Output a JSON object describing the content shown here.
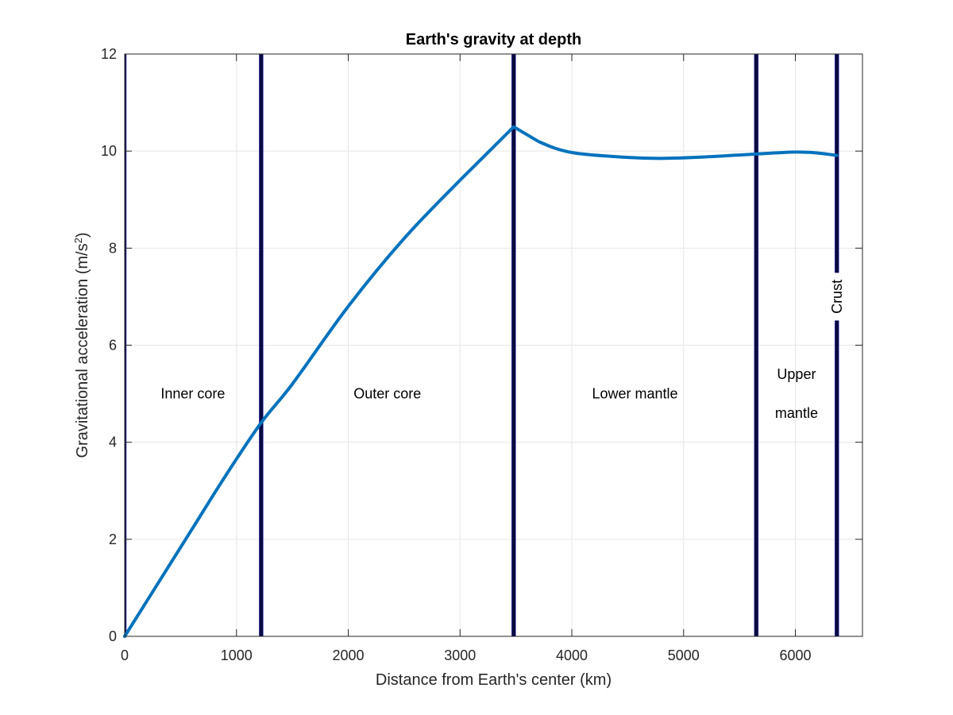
{
  "chart_data": {
    "type": "line",
    "title": "Earth's gravity at depth",
    "xlabel": "Distance from Earth's center (km)",
    "ylabel": "Gravitational acceleration (m/s",
    "ylabel_superscript": "2",
    "ylabel_suffix": ")",
    "xlim": [
      0,
      6600
    ],
    "ylim": [
      0,
      12
    ],
    "xticks": [
      0,
      1000,
      2000,
      3000,
      4000,
      5000,
      6000
    ],
    "yticks": [
      0,
      2,
      4,
      6,
      8,
      10,
      12
    ],
    "grid": true,
    "series": [
      {
        "color": "#0072bd",
        "x": [
          0,
          300,
          600,
          900,
          1220,
          1500,
          2000,
          2500,
          3000,
          3480,
          3700,
          4000,
          4500,
          4800,
          5200,
          5650,
          6000,
          6200,
          6371
        ],
        "y": [
          0,
          1.1,
          2.2,
          3.3,
          4.4,
          5.2,
          6.8,
          8.2,
          9.4,
          10.5,
          10.2,
          9.97,
          9.87,
          9.85,
          9.88,
          9.94,
          9.98,
          9.96,
          9.91
        ]
      }
    ],
    "boundaries": [
      0,
      1221,
      3480,
      5650,
      6371
    ],
    "regions": [
      {
        "label": "Inner core",
        "x": 610,
        "y": 5.0
      },
      {
        "label": "Outer core",
        "x": 2350,
        "y": 5.0
      },
      {
        "label": "Lower mantle",
        "x": 4565,
        "y": 5.0
      },
      {
        "label": "Upper",
        "x": 6010,
        "y": 5.4
      },
      {
        "label": "mantle",
        "x": 6010,
        "y": 4.6
      },
      {
        "label": "Crust",
        "x": 6371,
        "y": 7.0,
        "rotated": true
      }
    ]
  }
}
